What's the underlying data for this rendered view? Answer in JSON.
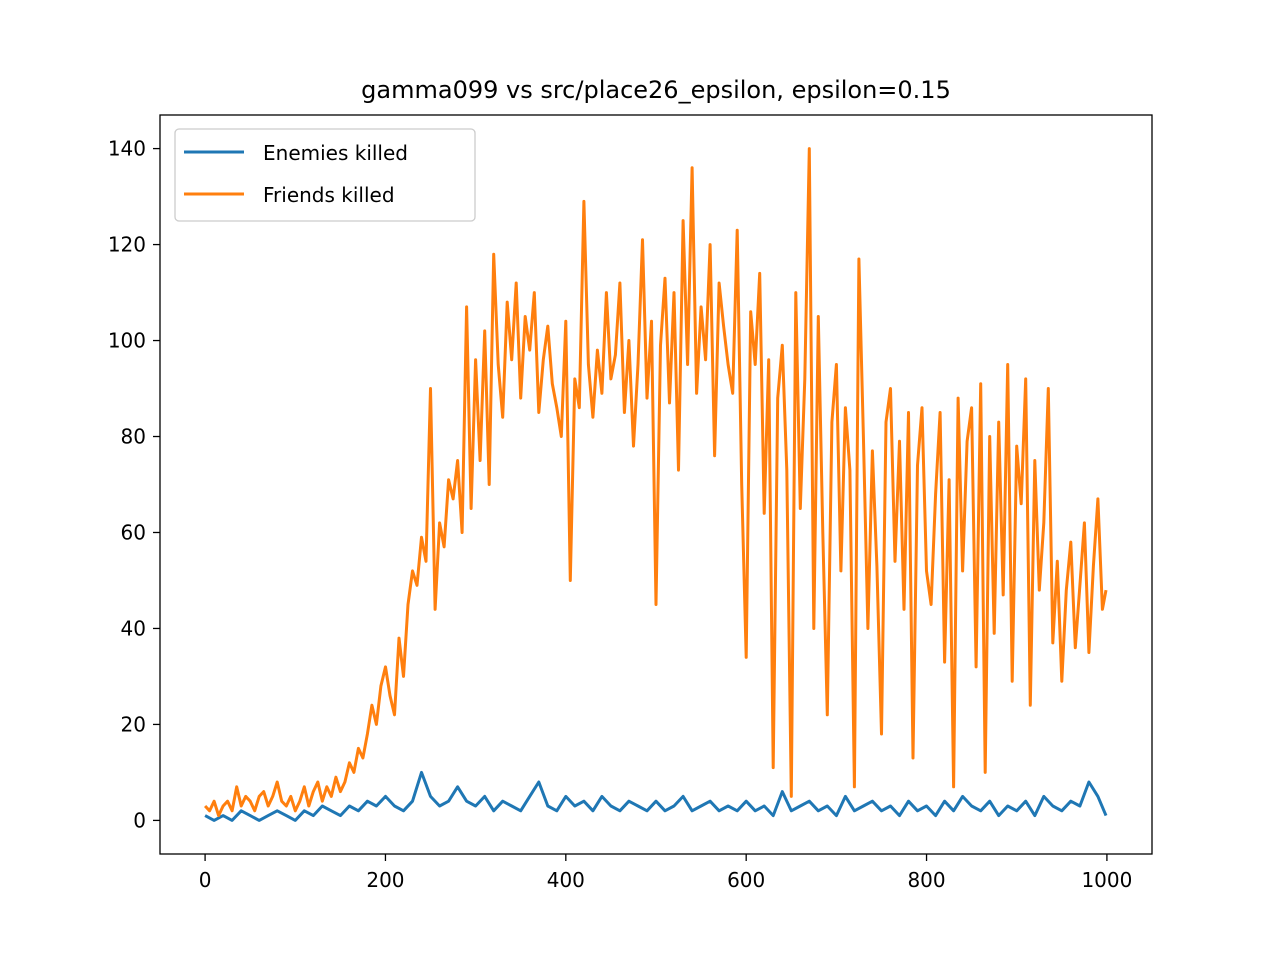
{
  "chart_data": {
    "type": "line",
    "title": "gamma099 vs src/place26_epsilon, epsilon=0.15",
    "xlabel": "",
    "ylabel": "",
    "xlim": [
      -50,
      1050
    ],
    "ylim": [
      -7,
      147
    ],
    "xticks": [
      0,
      200,
      400,
      600,
      800,
      1000
    ],
    "yticks": [
      0,
      20,
      40,
      60,
      80,
      100,
      120,
      140
    ],
    "grid": false,
    "legend_position": "upper left",
    "series": [
      {
        "name": "Enemies killed",
        "color": "#1f77b4",
        "x": [
          0,
          10,
          20,
          30,
          40,
          50,
          60,
          70,
          80,
          90,
          100,
          110,
          120,
          130,
          140,
          150,
          160,
          170,
          180,
          190,
          200,
          210,
          220,
          230,
          240,
          250,
          260,
          270,
          280,
          290,
          300,
          310,
          320,
          330,
          340,
          350,
          360,
          370,
          380,
          390,
          400,
          410,
          420,
          430,
          440,
          450,
          460,
          470,
          480,
          490,
          500,
          510,
          520,
          530,
          540,
          550,
          560,
          570,
          580,
          590,
          600,
          610,
          620,
          630,
          640,
          650,
          660,
          670,
          680,
          690,
          700,
          710,
          720,
          730,
          740,
          750,
          760,
          770,
          780,
          790,
          800,
          810,
          820,
          830,
          840,
          850,
          860,
          870,
          880,
          890,
          900,
          910,
          920,
          930,
          940,
          950,
          960,
          970,
          980,
          990,
          999
        ],
        "values": [
          1,
          0,
          1,
          0,
          2,
          1,
          0,
          1,
          2,
          1,
          0,
          2,
          1,
          3,
          2,
          1,
          3,
          2,
          4,
          3,
          5,
          3,
          2,
          4,
          10,
          5,
          3,
          4,
          7,
          4,
          3,
          5,
          2,
          4,
          3,
          2,
          5,
          8,
          3,
          2,
          5,
          3,
          4,
          2,
          5,
          3,
          2,
          4,
          3,
          2,
          4,
          2,
          3,
          5,
          2,
          3,
          4,
          2,
          3,
          2,
          4,
          2,
          3,
          1,
          6,
          2,
          3,
          4,
          2,
          3,
          1,
          5,
          2,
          3,
          4,
          2,
          3,
          1,
          4,
          2,
          3,
          1,
          4,
          2,
          5,
          3,
          2,
          4,
          1,
          3,
          2,
          4,
          1,
          5,
          3,
          2,
          4,
          3,
          8,
          5,
          1
        ]
      },
      {
        "name": "Friends killed",
        "color": "#ff7f0e",
        "x": [
          0,
          5,
          10,
          15,
          20,
          25,
          30,
          35,
          40,
          45,
          50,
          55,
          60,
          65,
          70,
          75,
          80,
          85,
          90,
          95,
          100,
          105,
          110,
          115,
          120,
          125,
          130,
          135,
          140,
          145,
          150,
          155,
          160,
          165,
          170,
          175,
          180,
          185,
          190,
          195,
          200,
          205,
          210,
          215,
          220,
          225,
          230,
          235,
          240,
          245,
          250,
          255,
          260,
          265,
          270,
          275,
          280,
          285,
          290,
          295,
          300,
          305,
          310,
          315,
          320,
          325,
          330,
          335,
          340,
          345,
          350,
          355,
          360,
          365,
          370,
          375,
          380,
          385,
          390,
          395,
          400,
          405,
          410,
          415,
          420,
          425,
          430,
          435,
          440,
          445,
          450,
          455,
          460,
          465,
          470,
          475,
          480,
          485,
          490,
          495,
          500,
          505,
          510,
          515,
          520,
          525,
          530,
          535,
          540,
          545,
          550,
          555,
          560,
          565,
          570,
          575,
          580,
          585,
          590,
          595,
          600,
          605,
          610,
          615,
          620,
          625,
          630,
          635,
          640,
          645,
          650,
          655,
          660,
          665,
          670,
          675,
          680,
          685,
          690,
          695,
          700,
          705,
          710,
          715,
          720,
          725,
          730,
          735,
          740,
          745,
          750,
          755,
          760,
          765,
          770,
          775,
          780,
          785,
          790,
          795,
          800,
          805,
          810,
          815,
          820,
          825,
          830,
          835,
          840,
          845,
          850,
          855,
          860,
          865,
          870,
          875,
          880,
          885,
          890,
          895,
          900,
          905,
          910,
          915,
          920,
          925,
          930,
          935,
          940,
          945,
          950,
          955,
          960,
          965,
          970,
          975,
          980,
          985,
          990,
          995,
          999
        ],
        "values": [
          3,
          2,
          4,
          1,
          3,
          4,
          2,
          7,
          3,
          5,
          4,
          2,
          5,
          6,
          3,
          5,
          8,
          4,
          3,
          5,
          2,
          4,
          7,
          3,
          6,
          8,
          4,
          7,
          5,
          9,
          6,
          8,
          12,
          10,
          15,
          13,
          18,
          24,
          20,
          28,
          32,
          26,
          22,
          38,
          30,
          45,
          52,
          49,
          59,
          54,
          90,
          44,
          62,
          57,
          71,
          67,
          75,
          60,
          107,
          65,
          96,
          75,
          102,
          70,
          118,
          95,
          84,
          108,
          96,
          112,
          88,
          105,
          98,
          110,
          85,
          96,
          103,
          91,
          86,
          80,
          104,
          50,
          92,
          86,
          129,
          95,
          84,
          98,
          89,
          110,
          92,
          97,
          112,
          85,
          100,
          78,
          95,
          121,
          88,
          104,
          45,
          99,
          113,
          87,
          110,
          73,
          125,
          95,
          136,
          89,
          107,
          96,
          120,
          76,
          112,
          103,
          95,
          89,
          123,
          70,
          34,
          106,
          95,
          114,
          64,
          96,
          11,
          88,
          99,
          73,
          5,
          110,
          65,
          92,
          140,
          40,
          105,
          60,
          22,
          83,
          95,
          52,
          86,
          73,
          7,
          117,
          80,
          40,
          77,
          53,
          18,
          83,
          90,
          54,
          79,
          44,
          85,
          13,
          74,
          86,
          52,
          45,
          68,
          85,
          33,
          71,
          7,
          88,
          52,
          79,
          86,
          32,
          91,
          10,
          80,
          39,
          83,
          47,
          95,
          29,
          78,
          66,
          92,
          24,
          75,
          48,
          62,
          90,
          37,
          54,
          29,
          48,
          58,
          36,
          49,
          62,
          35,
          53,
          67,
          44,
          48
        ]
      }
    ]
  }
}
